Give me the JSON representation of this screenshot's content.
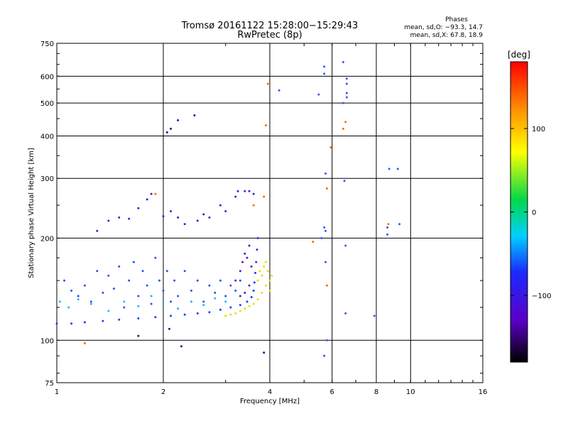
{
  "chart_data": {
    "type": "scatter",
    "title": "Tromsø 20161122 15:28:00−15:29:43",
    "subtitle": "RwPretec (8p)",
    "xlabel": "Frequency [MHz]",
    "ylabel": "Stationary phase Virtual Height [km]",
    "x_scale": "log2",
    "y_scale": "log",
    "xlim": [
      1,
      16
    ],
    "ylim": [
      75,
      750
    ],
    "x_ticks": [
      1,
      2,
      4,
      6,
      8,
      10,
      16
    ],
    "x_tick_labels": [
      "1",
      "2",
      "4",
      "6",
      "8",
      "10",
      "16"
    ],
    "y_ticks": [
      75,
      100,
      200,
      300,
      400,
      500,
      600,
      750
    ],
    "y_tick_labels": [
      "75",
      "100",
      "200",
      "300",
      "400",
      "500",
      "600",
      "750"
    ],
    "grid": true,
    "phase_header": "Phases",
    "phase_stats": [
      "mean, sd,O: −93.3, 14.7",
      "mean, sd,X:  67.8, 18.9"
    ],
    "colorbar": {
      "label": "[deg]",
      "range": [
        -180,
        180
      ],
      "ticks": [
        100,
        0,
        -100
      ],
      "tick_labels": [
        "100",
        "0",
        "−100"
      ],
      "colormap": "rainbow: black → purple → blue → cyan → green → yellow → orange → red"
    },
    "series": [
      {
        "description": "O-mode trace, F-region lower edge (blue)",
        "color": "#1a3cff",
        "points": [
          [
            1.0,
            112
          ],
          [
            1.1,
            112
          ],
          [
            1.2,
            113
          ],
          [
            1.35,
            114
          ],
          [
            1.5,
            115
          ],
          [
            1.7,
            116
          ],
          [
            1.9,
            117
          ],
          [
            2.1,
            118
          ],
          [
            2.3,
            119
          ],
          [
            2.5,
            120
          ],
          [
            2.7,
            121
          ],
          [
            2.9,
            123
          ],
          [
            3.1,
            125
          ],
          [
            3.3,
            127
          ],
          [
            3.45,
            130
          ],
          [
            3.55,
            134
          ],
          [
            3.6,
            140
          ],
          [
            3.62,
            148
          ],
          [
            3.64,
            158
          ],
          [
            3.66,
            170
          ],
          [
            3.68,
            185
          ],
          [
            3.7,
            200
          ]
        ]
      },
      {
        "description": "O-mode cloud 1.0–3.4 MHz, 120–175 km (blue/cyan)",
        "color": "#2255ee",
        "points": [
          [
            1.05,
            150
          ],
          [
            1.1,
            140
          ],
          [
            1.15,
            135
          ],
          [
            1.2,
            145
          ],
          [
            1.25,
            130
          ],
          [
            1.3,
            160
          ],
          [
            1.35,
            138
          ],
          [
            1.4,
            155
          ],
          [
            1.45,
            142
          ],
          [
            1.5,
            165
          ],
          [
            1.55,
            125
          ],
          [
            1.6,
            150
          ],
          [
            1.65,
            170
          ],
          [
            1.7,
            135
          ],
          [
            1.75,
            160
          ],
          [
            1.8,
            145
          ],
          [
            1.85,
            128
          ],
          [
            1.9,
            175
          ],
          [
            1.95,
            150
          ],
          [
            2.0,
            140
          ],
          [
            2.05,
            160
          ],
          [
            2.1,
            130
          ],
          [
            2.15,
            150
          ],
          [
            2.2,
            135
          ],
          [
            2.3,
            160
          ],
          [
            2.4,
            140
          ],
          [
            2.5,
            150
          ],
          [
            2.6,
            130
          ],
          [
            2.7,
            145
          ],
          [
            2.8,
            138
          ],
          [
            2.9,
            150
          ],
          [
            3.0,
            135
          ],
          [
            3.1,
            145
          ],
          [
            3.2,
            140
          ],
          [
            3.3,
            150
          ]
        ]
      },
      {
        "description": "O-mode upper trace 1.5–3.6 MHz, 190–280 km (blue/purple)",
        "color": "#2a2ad8",
        "points": [
          [
            1.3,
            210
          ],
          [
            1.4,
            225
          ],
          [
            1.5,
            230
          ],
          [
            1.6,
            228
          ],
          [
            1.7,
            245
          ],
          [
            1.8,
            260
          ],
          [
            1.85,
            270
          ],
          [
            2.0,
            232
          ],
          [
            2.1,
            240
          ],
          [
            2.2,
            230
          ],
          [
            2.3,
            220
          ],
          [
            2.5,
            225
          ],
          [
            2.6,
            235
          ],
          [
            2.7,
            230
          ],
          [
            2.9,
            250
          ],
          [
            3.0,
            240
          ],
          [
            3.2,
            265
          ],
          [
            3.25,
            275
          ],
          [
            3.4,
            275
          ],
          [
            3.5,
            275
          ],
          [
            3.6,
            270
          ]
        ]
      },
      {
        "description": "Cyan/light-blue cluster 1.0–3.0 MHz, 120–145 km",
        "color": "#22b8ee",
        "points": [
          [
            1.02,
            130
          ],
          [
            1.08,
            125
          ],
          [
            1.15,
            132
          ],
          [
            1.25,
            128
          ],
          [
            1.4,
            122
          ],
          [
            1.55,
            130
          ],
          [
            1.7,
            126
          ],
          [
            1.85,
            135
          ],
          [
            2.0,
            128
          ],
          [
            2.2,
            124
          ],
          [
            2.4,
            130
          ],
          [
            2.6,
            127
          ],
          [
            2.8,
            133
          ],
          [
            3.0,
            130
          ]
        ]
      },
      {
        "description": "Purple trace near 3.2–3.6 MHz, 140–200 km",
        "color": "#5a16c8",
        "points": [
          [
            3.2,
            150
          ],
          [
            3.3,
            160
          ],
          [
            3.35,
            170
          ],
          [
            3.4,
            180
          ],
          [
            3.45,
            175
          ],
          [
            3.5,
            190
          ],
          [
            3.55,
            165
          ],
          [
            3.5,
            145
          ],
          [
            3.4,
            138
          ],
          [
            3.3,
            135
          ]
        ]
      },
      {
        "description": "X-mode cloud 3.0–4.1 MHz, 115–175 km (yellow/yellow-green)",
        "color": "#e0e000",
        "points": [
          [
            3.0,
            118
          ],
          [
            3.1,
            119
          ],
          [
            3.2,
            120
          ],
          [
            3.3,
            122
          ],
          [
            3.4,
            124
          ],
          [
            3.5,
            126
          ],
          [
            3.6,
            128
          ],
          [
            3.7,
            132
          ],
          [
            3.8,
            138
          ],
          [
            3.9,
            145
          ],
          [
            4.0,
            150
          ],
          [
            4.05,
            155
          ],
          [
            3.95,
            160
          ],
          [
            3.85,
            165
          ],
          [
            3.9,
            170
          ],
          [
            4.0,
            140
          ],
          [
            3.7,
            150
          ],
          [
            3.8,
            155
          ],
          [
            3.75,
            160
          ]
        ]
      },
      {
        "description": "Scattered echoes above 4 MHz (mixed colours)",
        "color": "#3355ff",
        "points": [
          [
            4.25,
            545
          ],
          [
            5.5,
            530
          ],
          [
            5.7,
            640
          ],
          [
            5.7,
            610
          ],
          [
            5.75,
            310
          ],
          [
            5.7,
            215
          ],
          [
            5.75,
            210
          ],
          [
            5.6,
            200
          ],
          [
            5.75,
            170
          ],
          [
            5.8,
            100
          ],
          [
            5.7,
            90
          ],
          [
            6.6,
            590
          ],
          [
            6.6,
            570
          ],
          [
            6.6,
            535
          ],
          [
            6.6,
            520
          ],
          [
            6.45,
            660
          ],
          [
            6.45,
            500
          ],
          [
            6.5,
            295
          ],
          [
            6.55,
            190
          ],
          [
            6.55,
            120
          ],
          [
            7.9,
            118
          ],
          [
            8.6,
            215
          ],
          [
            8.6,
            205
          ],
          [
            8.7,
            320
          ],
          [
            9.2,
            320
          ],
          [
            9.3,
            220
          ]
        ]
      },
      {
        "description": "Warm-coloured echoes (orange/red)",
        "color": "#ff6a00",
        "points": [
          [
            1.2,
            98
          ],
          [
            1.9,
            270
          ],
          [
            3.6,
            250
          ],
          [
            3.85,
            265
          ],
          [
            3.9,
            430
          ],
          [
            3.95,
            570
          ],
          [
            5.3,
            195
          ],
          [
            5.8,
            280
          ],
          [
            5.95,
            370
          ],
          [
            5.8,
            145
          ],
          [
            6.45,
            420
          ],
          [
            6.55,
            440
          ],
          [
            8.65,
            220
          ]
        ]
      },
      {
        "description": "Isolated dark/low echoes",
        "color": "#1d1d8a",
        "points": [
          [
            1.7,
            103
          ],
          [
            2.08,
            108
          ],
          [
            2.25,
            96
          ],
          [
            2.05,
            410
          ],
          [
            2.1,
            420
          ],
          [
            2.2,
            445
          ],
          [
            2.45,
            460
          ],
          [
            3.85,
            92
          ]
        ]
      }
    ]
  }
}
